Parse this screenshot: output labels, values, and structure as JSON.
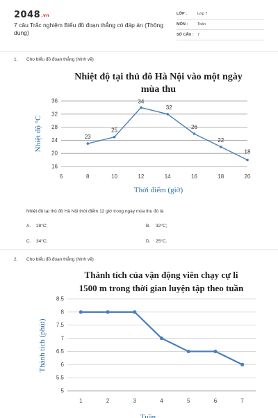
{
  "header": {
    "logo": "2048",
    "logo_tld": ".vn",
    "title": "7 câu Trắc nghiệm Biểu đồ đoạn thẳng có đáp án (Thông dụng)",
    "meta": [
      {
        "label": "LỚP :",
        "value": "Lớp 7"
      },
      {
        "label": "MÔN :",
        "value": "Toán"
      },
      {
        "label": "SỐ CÂU :",
        "value": "7"
      }
    ]
  },
  "questions": [
    {
      "number": "1.",
      "prompt": "Cho biểu đồ đoạn thẳng (hình vẽ)",
      "text": "Nhiệt độ tại thủ đô Hà Nội thời điểm 12 giờ trong ngày mùa thu đó là",
      "options": [
        {
          "letter": "A.",
          "text": "28°C;"
        },
        {
          "letter": "B.",
          "text": "32°C;"
        },
        {
          "letter": "C.",
          "text": "34°C;"
        },
        {
          "letter": "D.",
          "text": "25°C."
        }
      ]
    },
    {
      "number": "2.",
      "prompt": "Cho biểu đồ đoạn thẳng (hình vẽ)"
    }
  ],
  "chart_data": [
    {
      "type": "line",
      "title": [
        "Nhiệt độ tại thủ đô Hà Nội vào một ngày",
        "mùa thu"
      ],
      "xlabel": "Thời điểm (giờ)",
      "ylabel": "Nhiệt độ °C",
      "x": [
        8,
        10,
        12,
        14,
        16,
        18,
        20
      ],
      "values": [
        23,
        25,
        34,
        32,
        26,
        22,
        18
      ],
      "data_labels": [
        "23",
        "25",
        "34",
        "32",
        "26",
        "22",
        "18"
      ],
      "xticks": [
        "6",
        "8",
        "10",
        "12",
        "14",
        "16",
        "18",
        "20"
      ],
      "yticks": [
        "16",
        "20",
        "24",
        "28",
        "32",
        "36"
      ],
      "xlim": [
        6,
        20
      ],
      "ylim": [
        16,
        36
      ],
      "grid": true,
      "color": "#4a7ebb"
    },
    {
      "type": "line",
      "title": [
        "Thành tích của vận động viên chạy cự li",
        "1500 m trong thời gian luyện tập theo tuần"
      ],
      "xlabel": "Tuần",
      "ylabel": "Thành tích (phút)",
      "x": [
        1,
        2,
        3,
        4,
        5,
        6,
        7
      ],
      "values": [
        8,
        8,
        8,
        7,
        6.5,
        6.5,
        6
      ],
      "xticks": [
        "1",
        "2",
        "3",
        "4",
        "5",
        "6",
        "7"
      ],
      "yticks": [
        "5",
        "5.5",
        "6",
        "6.5",
        "7",
        "7.5",
        "8",
        "8.5"
      ],
      "xlim": [
        0.5,
        7.5
      ],
      "ylim": [
        5,
        8.5
      ],
      "grid": true,
      "color": "#4a7ebb"
    }
  ]
}
